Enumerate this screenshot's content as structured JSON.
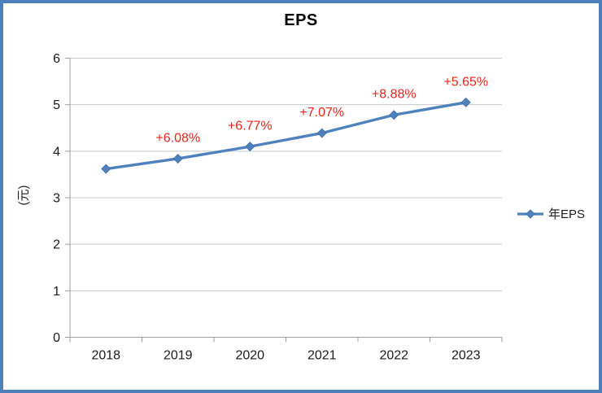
{
  "window": {
    "background": "#ffffff",
    "border_color": "#4e80bc"
  },
  "chart_data": {
    "type": "line",
    "title": "EPS",
    "ylabel": "(元)",
    "categories": [
      "2018",
      "2019",
      "2020",
      "2021",
      "2022",
      "2023"
    ],
    "series": [
      {
        "name": "年EPS",
        "marker": "diamond",
        "color": "#4f81bd",
        "values": [
          3.62,
          3.84,
          4.1,
          4.39,
          4.78,
          5.05
        ],
        "point_labels": [
          "",
          "+6.08%",
          "+6.77%",
          "+7.07%",
          "+8.88%",
          "+5.65%"
        ],
        "point_label_color": "#e8251c"
      }
    ],
    "ylim": [
      0,
      6
    ],
    "ytick_step": 1,
    "yticks": [
      "0",
      "1",
      "2",
      "3",
      "4",
      "5",
      "6"
    ],
    "grid": true,
    "legend_position": "right",
    "gridline_color": "#c8c8c8",
    "axis_color": "#9e9e9e",
    "tick_label_color": "#1a1a1a"
  }
}
